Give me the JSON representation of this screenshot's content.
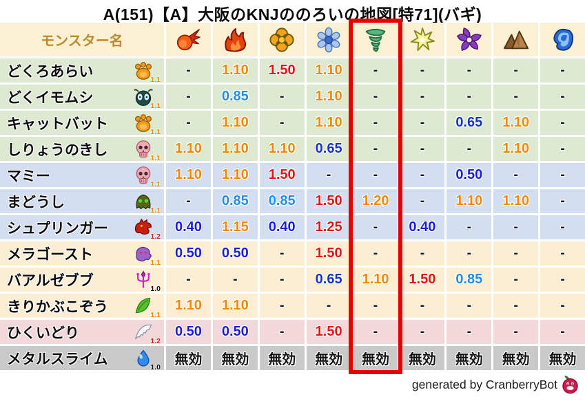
{
  "title": "A(151)【A】大阪のKNJののろいの地図[特71](バギ)",
  "table": {
    "name_header": "モンスター名",
    "element_columns": [
      {
        "icon": "fireball-icon"
      },
      {
        "icon": "flame-icon"
      },
      {
        "icon": "explosion-icon"
      },
      {
        "icon": "snowflake-icon"
      },
      {
        "icon": "tornado-icon",
        "highlighted": true
      },
      {
        "icon": "sparkle-icon"
      },
      {
        "icon": "pinwheel-icon"
      },
      {
        "icon": "mountain-icon"
      },
      {
        "icon": "wave-icon"
      }
    ],
    "highlighted_column_index": 4,
    "rows": [
      {
        "name": "どくろあらい",
        "icon": "paw-icon",
        "badge": "1.1",
        "color": "green",
        "values": [
          "-",
          "1.10",
          "1.50",
          "1.10",
          "-",
          "-",
          "-",
          "-",
          "-"
        ]
      },
      {
        "name": "どくイモムシ",
        "icon": "bug-icon",
        "badge": "1.1",
        "color": "green",
        "values": [
          "-",
          "0.85",
          "-",
          "1.10",
          "-",
          "-",
          "-",
          "-",
          "-"
        ]
      },
      {
        "name": "キャットバット",
        "icon": "paw-icon",
        "badge": "1.1",
        "color": "green",
        "values": [
          "-",
          "1.10",
          "-",
          "1.10",
          "-",
          "-",
          "0.65",
          "1.10",
          "-"
        ]
      },
      {
        "name": "しりょうのきし",
        "icon": "skull-icon",
        "badge": "1.1",
        "color": "green",
        "values": [
          "1.10",
          "1.10",
          "1.10",
          "0.65",
          "-",
          "-",
          "-",
          "1.10",
          "-"
        ]
      },
      {
        "name": "マミー",
        "icon": "skull-icon",
        "badge": "1.1",
        "color": "blue",
        "values": [
          "1.10",
          "1.10",
          "1.50",
          "-",
          "-",
          "-",
          "0.50",
          "-",
          "-"
        ]
      },
      {
        "name": "まどうし",
        "icon": "hood-icon",
        "badge": "1.1",
        "color": "blue",
        "values": [
          "-",
          "0.85",
          "0.85",
          "1.50",
          "1.20",
          "-",
          "1.10",
          "1.10",
          "-"
        ]
      },
      {
        "name": "シュプリンガー",
        "icon": "dragon-icon",
        "badge": "1.2",
        "color": "blue",
        "values": [
          "0.40",
          "1.15",
          "0.40",
          "1.25",
          "-",
          "0.40",
          "-",
          "-",
          "-"
        ]
      },
      {
        "name": "メラゴースト",
        "icon": "ghost-icon",
        "badge": "1.1",
        "color": "cream",
        "values": [
          "0.50",
          "0.50",
          "-",
          "1.50",
          "-",
          "-",
          "-",
          "-",
          "-"
        ]
      },
      {
        "name": "バアルゼブブ",
        "icon": "trident-icon",
        "badge": "1.0",
        "color": "cream",
        "values": [
          "-",
          "-",
          "-",
          "0.65",
          "1.10",
          "1.50",
          "0.85",
          "-",
          "-"
        ]
      },
      {
        "name": "きりかぶこぞう",
        "icon": "leaf-icon",
        "badge": "1.1",
        "color": "cream",
        "values": [
          "1.10",
          "1.10",
          "-",
          "-",
          "-",
          "-",
          "-",
          "-",
          "-"
        ]
      },
      {
        "name": "ひくいどり",
        "icon": "wing-icon",
        "badge": "1.2",
        "color": "pink",
        "values": [
          "0.50",
          "0.50",
          "-",
          "1.50",
          "-",
          "-",
          "-",
          "-",
          "-"
        ]
      },
      {
        "name": "メタルスライム",
        "icon": "slime-icon",
        "badge": "1.0",
        "color": "gray",
        "values": [
          "無効",
          "無効",
          "無効",
          "無効",
          "無効",
          "無効",
          "無効",
          "無効",
          "無効"
        ]
      }
    ]
  },
  "legend_colors": {
    "highlight_box": "#e80000",
    "header_bg": "#faf0d2",
    "header_text": "#bb8a33",
    "row_colors": {
      "green": "#dee9d2",
      "blue": "#d3dff0",
      "cream": "#fbeed3",
      "pink": "#f3d8da",
      "gray": "#c9c9c9"
    },
    "value_colors": {
      "-": "#1a1a1a",
      "0.40": "#1c1cd8",
      "0.50": "#1c1cd8",
      "0.65": "#1433cc",
      "0.85": "#1f8fe8",
      "1.10": "#f08900",
      "1.15": "#f08900",
      "1.20": "#f08900",
      "1.25": "#e31414",
      "1.50": "#e31414",
      "無効": "#141414"
    },
    "badge_colors": {
      "1.0": "#111111",
      "1.1": "#f08900",
      "1.2": "#e31414"
    }
  },
  "footer": {
    "credit": "generated by CranberryBot",
    "icon": "cranberry-icon"
  }
}
